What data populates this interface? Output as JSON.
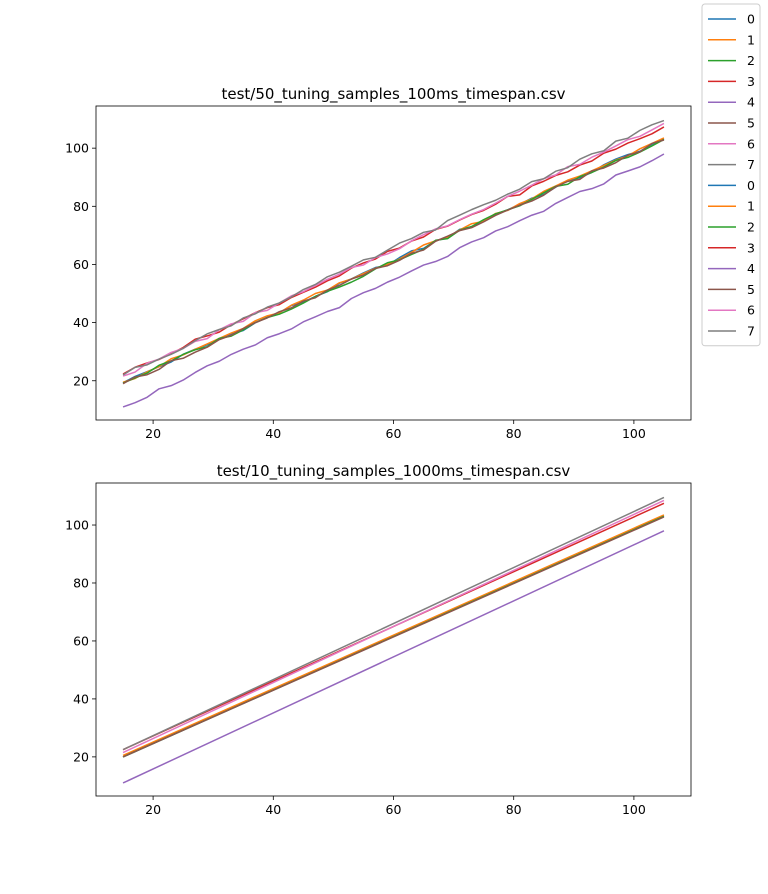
{
  "chart_data": [
    {
      "type": "line",
      "title": "test/50_tuning_samples_100ms_timespan.csv",
      "xlabel": "",
      "ylabel": "",
      "xlim": [
        10.5,
        109.5
      ],
      "ylim": [
        6.5,
        114.5
      ],
      "xticks": [
        20,
        40,
        60,
        80,
        100
      ],
      "yticks": [
        20,
        40,
        60,
        80,
        100
      ],
      "x": [
        15,
        105
      ],
      "series": [
        {
          "name": "0",
          "color": "#1f77b4",
          "values": [
            19.3,
            103.2
          ]
        },
        {
          "name": "1",
          "color": "#ff7f0e",
          "values": [
            19.5,
            103.5
          ]
        },
        {
          "name": "2",
          "color": "#2ca02c",
          "values": [
            19.2,
            103.0
          ]
        },
        {
          "name": "3",
          "color": "#d62728",
          "values": [
            22.3,
            107.3
          ]
        },
        {
          "name": "4",
          "color": "#9467bd",
          "values": [
            11.0,
            98.0
          ]
        },
        {
          "name": "5",
          "color": "#8c564b",
          "values": [
            19.0,
            102.8
          ]
        },
        {
          "name": "6",
          "color": "#e377c2",
          "values": [
            21.6,
            108.5
          ]
        },
        {
          "name": "7",
          "color": "#7f7f7f",
          "values": [
            22.0,
            109.5
          ]
        }
      ]
    },
    {
      "type": "line",
      "title": "test/10_tuning_samples_1000ms_timespan.csv",
      "xlabel": "",
      "ylabel": "",
      "xlim": [
        10.5,
        109.5
      ],
      "ylim": [
        6.5,
        114.5
      ],
      "xticks": [
        20,
        40,
        60,
        80,
        100
      ],
      "yticks": [
        20,
        40,
        60,
        80,
        100
      ],
      "x": [
        15,
        105
      ],
      "series": [
        {
          "name": "0",
          "color": "#1f77b4",
          "values": [
            20.0,
            103.0
          ]
        },
        {
          "name": "1",
          "color": "#ff7f0e",
          "values": [
            20.5,
            103.5
          ]
        },
        {
          "name": "2",
          "color": "#2ca02c",
          "values": [
            20.0,
            103.0
          ]
        },
        {
          "name": "3",
          "color": "#d62728",
          "values": [
            22.5,
            107.5
          ]
        },
        {
          "name": "4",
          "color": "#9467bd",
          "values": [
            11.0,
            98.0
          ]
        },
        {
          "name": "5",
          "color": "#8c564b",
          "values": [
            20.0,
            102.8
          ]
        },
        {
          "name": "6",
          "color": "#e377c2",
          "values": [
            21.5,
            108.5
          ]
        },
        {
          "name": "7",
          "color": "#7f7f7f",
          "values": [
            22.5,
            109.5
          ]
        }
      ]
    }
  ],
  "legend": {
    "placement": "top-right, outside",
    "entries": [
      {
        "label": "0",
        "color": "#1f77b4"
      },
      {
        "label": "1",
        "color": "#ff7f0e"
      },
      {
        "label": "2",
        "color": "#2ca02c"
      },
      {
        "label": "3",
        "color": "#d62728"
      },
      {
        "label": "4",
        "color": "#9467bd"
      },
      {
        "label": "5",
        "color": "#8c564b"
      },
      {
        "label": "6",
        "color": "#e377c2"
      },
      {
        "label": "7",
        "color": "#7f7f7f"
      },
      {
        "label": "0",
        "color": "#1f77b4"
      },
      {
        "label": "1",
        "color": "#ff7f0e"
      },
      {
        "label": "2",
        "color": "#2ca02c"
      },
      {
        "label": "3",
        "color": "#d62728"
      },
      {
        "label": "4",
        "color": "#9467bd"
      },
      {
        "label": "5",
        "color": "#8c564b"
      },
      {
        "label": "6",
        "color": "#e377c2"
      },
      {
        "label": "7",
        "color": "#7f7f7f"
      }
    ]
  }
}
